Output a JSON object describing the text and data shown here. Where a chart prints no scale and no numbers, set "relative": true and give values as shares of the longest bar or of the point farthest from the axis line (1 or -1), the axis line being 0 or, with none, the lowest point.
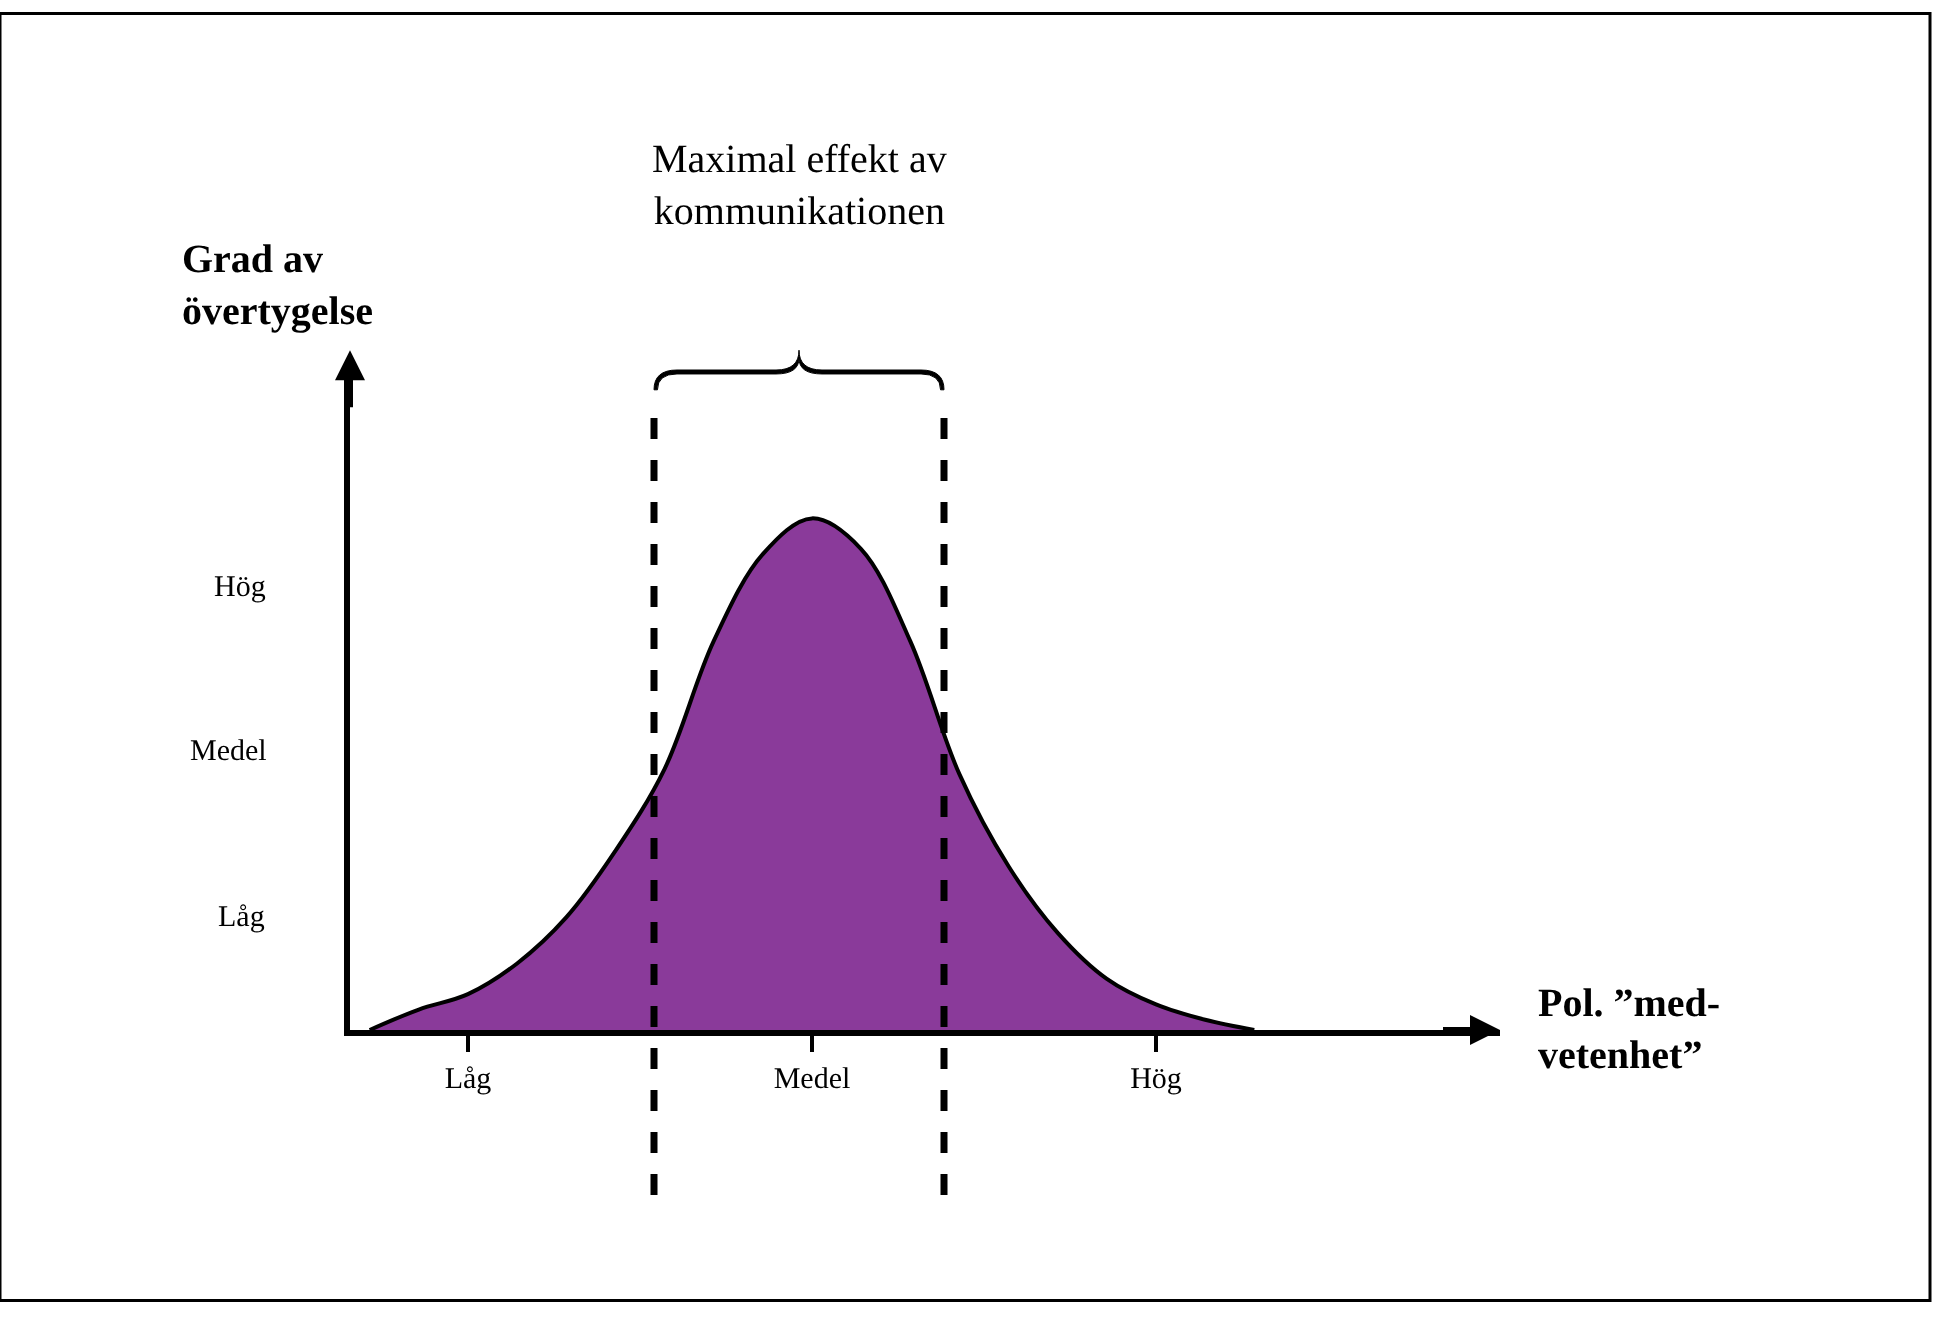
{
  "chart_data": {
    "type": "area",
    "relative": true,
    "title": "Maximal effekt av\nkommunikationen",
    "xlabel": "Pol. ”med-\nvetenhet”",
    "ylabel": "Grad av\növertygelse",
    "categories": [
      null,
      null,
      "Låg",
      null,
      null,
      null,
      null,
      null,
      null,
      "Medel",
      null,
      null,
      null,
      null,
      null,
      null,
      "Hög",
      null,
      null,
      null,
      null,
      null,
      null,
      null
    ],
    "series": [
      {
        "color": "#8a3a9a",
        "values": [
          0,
          0.04,
          0.07,
          0.13,
          0.22,
          0.35,
          0.51,
          0.76,
          0.93,
          1.0,
          0.94,
          0.76,
          0.5,
          0.32,
          0.19,
          0.1,
          0.05,
          0.02,
          0,
          null,
          null,
          null,
          null,
          null
        ]
      }
    ],
    "annotations": [
      "Hög",
      "Medel",
      "Låg"
    ]
  }
}
